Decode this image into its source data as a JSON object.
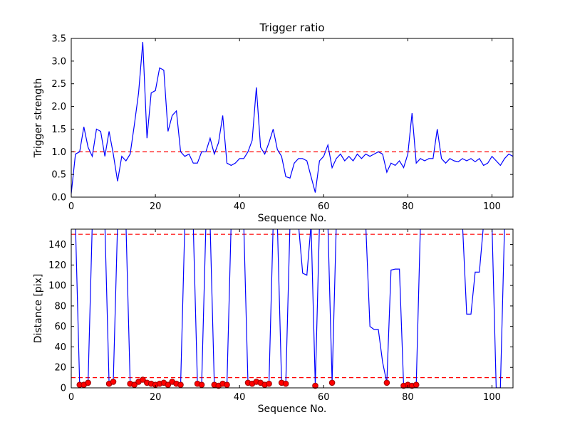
{
  "figure": {
    "title": "Trigger ratio",
    "background": "#ffffff"
  },
  "chart_data": [
    {
      "type": "line",
      "title": "Trigger ratio",
      "xlabel": "Sequence No.",
      "ylabel": "Trigger strength",
      "xlim": [
        0,
        105
      ],
      "ylim": [
        0.0,
        3.5
      ],
      "grid": false,
      "xticks": [
        0,
        20,
        40,
        60,
        80,
        100
      ],
      "xticklabels": [
        "0",
        "20",
        "40",
        "60",
        "80",
        "100"
      ],
      "yticks": [
        0.0,
        0.5,
        1.0,
        1.5,
        2.0,
        2.5,
        3.0,
        3.5
      ],
      "yticklabels": [
        "0.0",
        "0.5",
        "1.0",
        "1.5",
        "2.0",
        "2.5",
        "3.0",
        "3.5"
      ],
      "line_color": "#0000ff",
      "x_is_index": true,
      "values": [
        0.08,
        0.95,
        1.0,
        1.55,
        1.1,
        0.9,
        1.5,
        1.45,
        0.9,
        1.45,
        0.95,
        0.35,
        0.9,
        0.8,
        0.95,
        1.6,
        2.3,
        3.42,
        1.3,
        2.3,
        2.35,
        2.85,
        2.8,
        1.45,
        1.8,
        1.9,
        1.0,
        0.9,
        0.95,
        0.75,
        0.75,
        1.0,
        1.0,
        1.3,
        0.95,
        1.2,
        1.8,
        0.75,
        0.7,
        0.75,
        0.85,
        0.85,
        1.0,
        1.25,
        2.42,
        1.1,
        0.95,
        1.2,
        1.5,
        1.05,
        0.9,
        0.45,
        0.42,
        0.75,
        0.85,
        0.85,
        0.8,
        0.45,
        0.1,
        0.8,
        0.9,
        1.15,
        0.65,
        0.85,
        0.95,
        0.8,
        0.9,
        0.8,
        0.95,
        0.85,
        0.95,
        0.9,
        0.95,
        1.0,
        0.95,
        0.55,
        0.75,
        0.7,
        0.8,
        0.65,
        0.95,
        1.85,
        0.75,
        0.85,
        0.8,
        0.85,
        0.85,
        1.5,
        0.85,
        0.75,
        0.85,
        0.8,
        0.78,
        0.85,
        0.8,
        0.85,
        0.78,
        0.85,
        0.7,
        0.75,
        0.9,
        0.8,
        0.7,
        0.85,
        0.95,
        0.9
      ],
      "thresholds": [
        {
          "y": 1.0,
          "color": "#ff0000",
          "style": "dashed"
        }
      ]
    },
    {
      "type": "line",
      "title": "",
      "xlabel": "Sequence No.",
      "ylabel": "Distance [pix]",
      "xlim": [
        0,
        105
      ],
      "ylim": [
        0,
        155
      ],
      "grid": false,
      "xticks": [
        0,
        20,
        40,
        60,
        80,
        100
      ],
      "xticklabels": [
        "0",
        "20",
        "40",
        "60",
        "80",
        "100"
      ],
      "yticks": [
        0,
        20,
        40,
        60,
        80,
        100,
        120,
        140
      ],
      "yticklabels": [
        "0",
        "20",
        "40",
        "60",
        "80",
        "100",
        "120",
        "140"
      ],
      "line_color": "#0000ff",
      "x_is_index": true,
      "offscale_value": 160,
      "values": [
        160,
        160,
        3,
        3,
        5,
        160,
        160,
        160,
        160,
        4,
        6,
        160,
        160,
        160,
        4,
        3,
        6,
        8,
        5,
        4,
        3,
        4,
        5,
        3,
        6,
        4,
        3,
        160,
        160,
        160,
        4,
        3,
        160,
        160,
        3,
        2,
        4,
        3,
        160,
        160,
        160,
        160,
        5,
        4,
        6,
        5,
        3,
        4,
        160,
        160,
        5,
        4,
        160,
        160,
        160,
        112,
        110,
        160,
        2,
        160,
        160,
        160,
        5,
        160,
        160,
        160,
        160,
        160,
        160,
        160,
        160,
        60,
        57,
        57,
        25,
        5,
        115,
        116,
        116,
        2,
        3,
        2,
        3,
        160,
        160,
        160,
        160,
        160,
        160,
        160,
        160,
        160,
        160,
        160,
        72,
        72,
        113,
        113,
        160,
        160,
        160,
        0,
        0,
        160,
        160,
        160
      ],
      "thresholds": [
        {
          "y": 150,
          "color": "#ff0000",
          "style": "dashed"
        },
        {
          "y": 10,
          "color": "#ff0000",
          "style": "dashed"
        }
      ],
      "markers": {
        "shape": "circle",
        "color": "#ff0000",
        "edge_color": "#990000",
        "points": [
          [
            2,
            3
          ],
          [
            3,
            3
          ],
          [
            4,
            5
          ],
          [
            9,
            4
          ],
          [
            10,
            6
          ],
          [
            14,
            4
          ],
          [
            15,
            3
          ],
          [
            16,
            6
          ],
          [
            17,
            8
          ],
          [
            18,
            5
          ],
          [
            19,
            4
          ],
          [
            20,
            3
          ],
          [
            21,
            4
          ],
          [
            22,
            5
          ],
          [
            23,
            3
          ],
          [
            24,
            6
          ],
          [
            25,
            4
          ],
          [
            26,
            3
          ],
          [
            30,
            4
          ],
          [
            31,
            3
          ],
          [
            34,
            3
          ],
          [
            35,
            2
          ],
          [
            36,
            4
          ],
          [
            37,
            3
          ],
          [
            42,
            5
          ],
          [
            43,
            4
          ],
          [
            44,
            6
          ],
          [
            45,
            5
          ],
          [
            46,
            3
          ],
          [
            47,
            4
          ],
          [
            50,
            5
          ],
          [
            51,
            4
          ],
          [
            58,
            2
          ],
          [
            62,
            5
          ],
          [
            75,
            5
          ],
          [
            79,
            2
          ],
          [
            80,
            3
          ],
          [
            81,
            2
          ],
          [
            82,
            3
          ]
        ]
      }
    }
  ]
}
